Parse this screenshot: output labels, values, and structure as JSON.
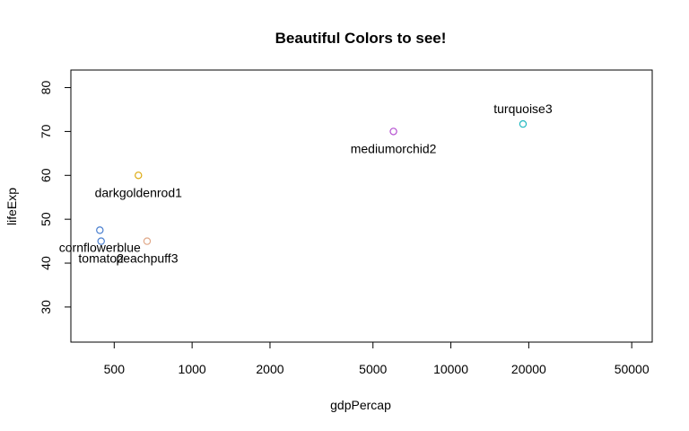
{
  "chart_data": {
    "type": "scatter",
    "title": "Beautiful Colors to see!",
    "xlabel": "gdpPercap",
    "ylabel": "lifeExp",
    "x_scale": "log",
    "xlim": [
      340,
      60000
    ],
    "ylim": [
      22,
      84
    ],
    "x_ticks": [
      500,
      1000,
      2000,
      5000,
      10000,
      20000,
      50000
    ],
    "x_tick_labels": [
      "500",
      "1000",
      "2000",
      "5000",
      "10000",
      "20000",
      "50000"
    ],
    "y_ticks": [
      30,
      40,
      50,
      60,
      70,
      80
    ],
    "y_tick_labels": [
      "30",
      "40",
      "50",
      "60",
      "70",
      "80"
    ],
    "grid": false,
    "points": [
      {
        "x": 440,
        "y": 47.5,
        "color": "#4A7FCF",
        "label": "cornflowerblue",
        "label_pos": "below"
      },
      {
        "x": 445,
        "y": 45.0,
        "color": "#4A7FCF",
        "label": "tomato2",
        "label_pos": "below"
      },
      {
        "x": 620,
        "y": 60.0,
        "color": "#DDAA10",
        "label": "darkgoldenrod1",
        "label_pos": "below"
      },
      {
        "x": 670,
        "y": 45.0,
        "color": "#E0A888",
        "label": "peachpuff3",
        "label_pos": "below"
      },
      {
        "x": 6000,
        "y": 70.0,
        "color": "#B44FD0",
        "label": "mediumorchid2",
        "label_pos": "below"
      },
      {
        "x": 19000,
        "y": 71.7,
        "color": "#20B8C0",
        "label": "turquoise3",
        "label_pos": "above"
      }
    ]
  }
}
